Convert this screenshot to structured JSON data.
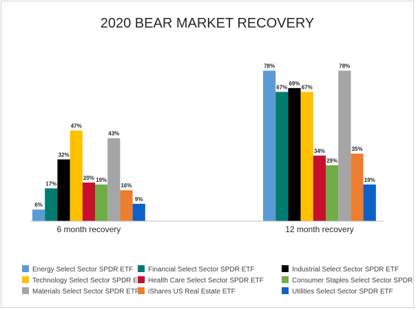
{
  "chart_data": {
    "type": "bar",
    "title": "2020 BEAR MARKET RECOVERY",
    "xlabel": "",
    "ylabel": "",
    "ylim": [
      0,
      80
    ],
    "grid": false,
    "legend_position": "bottom",
    "categories": [
      "6 month recovery",
      "12 month recovery"
    ],
    "series": [
      {
        "name": "Energy Select Sector SPDR ETF",
        "color": "#5B9BD5",
        "values": [
          6,
          78
        ],
        "labels": [
          "6%",
          "78%"
        ]
      },
      {
        "name": "Financial Select Sector SPDR ETF",
        "color": "#047B70",
        "values": [
          17,
          67
        ],
        "labels": [
          "17%",
          "67%"
        ]
      },
      {
        "name": "Industrial Select Sector SPDR ETF",
        "color": "#000000",
        "values": [
          32,
          69
        ],
        "labels": [
          "32%",
          "69%"
        ]
      },
      {
        "name": "Technology Select Sector SPDR ETF",
        "color": "#FFC000",
        "values": [
          47,
          67
        ],
        "labels": [
          "47%",
          "67%"
        ]
      },
      {
        "name": "Health Care Select Sector SPDR ETF",
        "color": "#C8102E",
        "values": [
          20,
          34
        ],
        "labels": [
          "20%",
          "34%"
        ]
      },
      {
        "name": "Consumer Staples Select Sector SPDR ETF",
        "color": "#70AD47",
        "values": [
          19,
          29
        ],
        "labels": [
          "19%",
          "29%"
        ]
      },
      {
        "name": "Materials Select Sector SPDR ETF",
        "color": "#A5A5A5",
        "values": [
          43,
          78
        ],
        "labels": [
          "43%",
          "78%"
        ]
      },
      {
        "name": "iShares US Real Estate ETF",
        "color": "#ED7D31",
        "values": [
          16,
          35
        ],
        "labels": [
          "16%",
          "35%"
        ]
      },
      {
        "name": "Utilities Select Sector SPDR ETF",
        "color": "#0E61C6",
        "values": [
          9,
          19
        ],
        "labels": [
          "9%",
          "19%"
        ]
      }
    ],
    "legend_order": [
      0,
      3,
      6,
      1,
      4,
      7,
      2,
      5,
      8
    ]
  }
}
